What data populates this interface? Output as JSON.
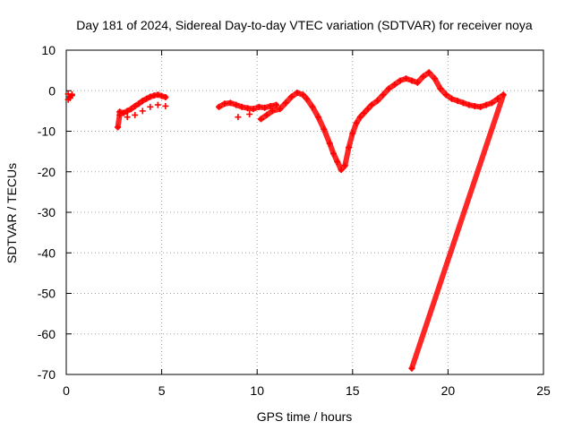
{
  "chart_data": {
    "type": "scatter",
    "title": "Day 181 of 2024, Sidereal Day-to-day VTEC variation (SDTVAR) for receiver noya",
    "xlabel": "GPS time / hours",
    "ylabel": "SDTVAR / TECUs",
    "xlim": [
      0,
      25
    ],
    "ylim": [
      -70,
      10
    ],
    "xticks": [
      0,
      5,
      10,
      15,
      20,
      25
    ],
    "yticks": [
      10,
      0,
      -10,
      -20,
      -30,
      -40,
      -50,
      -60,
      -70
    ],
    "grid": true,
    "marker": "+",
    "color": "#ff0000",
    "series": [
      {
        "name": "SDTVAR",
        "x": [
          0.1,
          0.2,
          0.3,
          0.1,
          0.2,
          0.3,
          2.7,
          2.8,
          2.8,
          3.0,
          3.2,
          3.4,
          3.6,
          3.8,
          4.0,
          4.2,
          4.4,
          4.6,
          4.8,
          5.0,
          5.2,
          3.2,
          3.6,
          4.0,
          4.4,
          4.8,
          5.2,
          8.0,
          8.3,
          8.6,
          8.9,
          9.2,
          9.5,
          9.8,
          10.1,
          10.4,
          10.7,
          11.0,
          9.0,
          9.6,
          10.2,
          10.5,
          10.8,
          11.2,
          11.5,
          11.8,
          12.1,
          12.4,
          12.6,
          12.9,
          13.2,
          13.5,
          13.8,
          14.0,
          14.2,
          14.4,
          14.6,
          14.8,
          15.0,
          15.2,
          15.4,
          15.6,
          15.8,
          16.0,
          16.3,
          16.6,
          16.9,
          17.2,
          17.5,
          17.8,
          18.1,
          18.4,
          18.7,
          19.0,
          19.3,
          19.6,
          19.9,
          20.2,
          20.5,
          20.8,
          21.1,
          21.4,
          21.7,
          22.0,
          22.3,
          22.6,
          22.9,
          18.1
        ],
        "y": [
          -0.8,
          -1.5,
          -1.2,
          -2.2,
          -1.8,
          -0.9,
          -9.0,
          -6.0,
          -5.2,
          -5.5,
          -5.0,
          -4.5,
          -3.8,
          -3.2,
          -2.5,
          -2.0,
          -1.5,
          -1.2,
          -1.0,
          -1.3,
          -1.6,
          -6.5,
          -6.0,
          -5.0,
          -4.0,
          -3.5,
          -3.8,
          -4.0,
          -3.2,
          -3.0,
          -3.5,
          -4.0,
          -4.3,
          -4.5,
          -4.0,
          -4.2,
          -3.8,
          -3.5,
          -6.5,
          -5.8,
          -7.0,
          -6.0,
          -5.0,
          -4.5,
          -3.0,
          -1.5,
          -0.5,
          -1.0,
          -2.0,
          -4.0,
          -6.5,
          -9.5,
          -13.0,
          -15.5,
          -17.5,
          -19.5,
          -18.5,
          -14.0,
          -10.5,
          -8.0,
          -6.5,
          -5.5,
          -4.5,
          -3.5,
          -2.5,
          -1.0,
          0.5,
          1.5,
          2.5,
          3.0,
          2.5,
          2.0,
          3.5,
          4.5,
          3.0,
          0.5,
          -1.0,
          -2.0,
          -2.5,
          -3.0,
          -3.5,
          -3.8,
          -4.0,
          -3.5,
          -3.0,
          -2.0,
          -1.0,
          -68.5
        ]
      }
    ]
  }
}
